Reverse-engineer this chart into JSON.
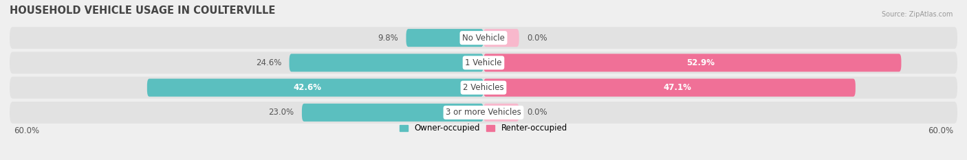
{
  "title": "HOUSEHOLD VEHICLE USAGE IN COULTERVILLE",
  "source": "Source: ZipAtlas.com",
  "categories": [
    "No Vehicle",
    "1 Vehicle",
    "2 Vehicles",
    "3 or more Vehicles"
  ],
  "owner_values": [
    9.8,
    24.6,
    42.6,
    23.0
  ],
  "renter_values": [
    0.0,
    52.9,
    47.1,
    0.0
  ],
  "owner_color": "#5bbfbf",
  "renter_color": "#f07097",
  "renter_color_light": "#f8b8cc",
  "background_color": "#efefef",
  "bar_bg_color": "#e2e2e2",
  "xlim": 60.0,
  "legend_owner": "Owner-occupied",
  "legend_renter": "Renter-occupied",
  "title_fontsize": 10.5,
  "label_fontsize": 8.5,
  "figsize": [
    14.06,
    2.33
  ],
  "dpi": 100
}
